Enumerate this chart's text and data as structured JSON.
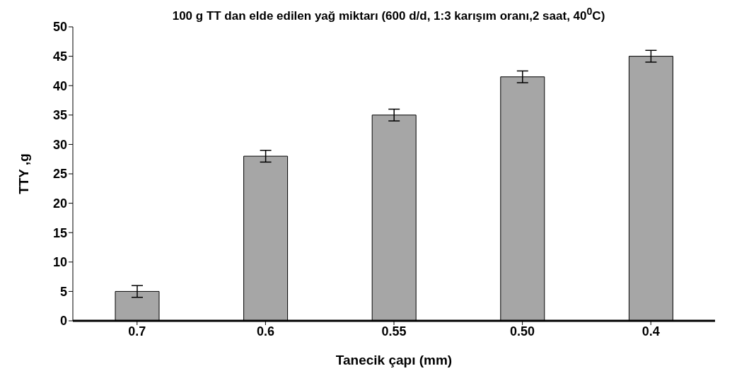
{
  "chart_data": {
    "type": "bar",
    "title": "100 g TT dan elde edilen yağ miktarı (600 d/d, 1:3 karışım oranı,2 saat, 40$^{0}$C)",
    "xlabel": "Tanecik çapı (mm)",
    "ylabel": "TTY ,g",
    "categories": [
      "0.7",
      "0.6",
      "0.55",
      "0.50",
      "0.4"
    ],
    "values": [
      5,
      28,
      35,
      41.5,
      45
    ],
    "errors": [
      1,
      1,
      1,
      1,
      1
    ],
    "color": "#a6a6a6",
    "ylim": [
      0,
      50
    ],
    "yticks": [
      0,
      5,
      10,
      15,
      20,
      25,
      30,
      35,
      40,
      45,
      50
    ],
    "grid": false,
    "legend": false
  }
}
